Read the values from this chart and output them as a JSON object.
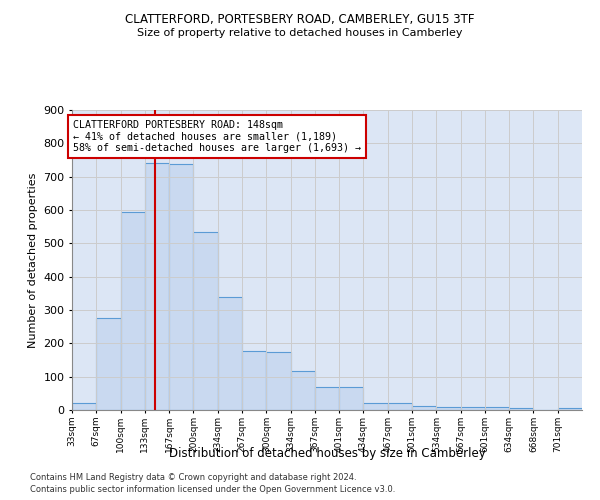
{
  "title1": "CLATTERFORD, PORTESBERY ROAD, CAMBERLEY, GU15 3TF",
  "title2": "Size of property relative to detached houses in Camberley",
  "xlabel": "Distribution of detached houses by size in Camberley",
  "ylabel": "Number of detached properties",
  "footnote1": "Contains HM Land Registry data © Crown copyright and database right 2024.",
  "footnote2": "Contains public sector information licensed under the Open Government Licence v3.0.",
  "bar_labels": [
    "33sqm",
    "67sqm",
    "100sqm",
    "133sqm",
    "167sqm",
    "200sqm",
    "234sqm",
    "267sqm",
    "300sqm",
    "334sqm",
    "367sqm",
    "401sqm",
    "434sqm",
    "467sqm",
    "501sqm",
    "534sqm",
    "567sqm",
    "601sqm",
    "634sqm",
    "668sqm",
    "701sqm"
  ],
  "bar_values": [
    20,
    275,
    595,
    742,
    738,
    535,
    340,
    178,
    175,
    118,
    68,
    68,
    22,
    22,
    13,
    10,
    10,
    8,
    7,
    1,
    7
  ],
  "bar_color": "#c9d9f0",
  "bar_edge_color": "#5b9bd5",
  "annotation_text": "CLATTERFORD PORTESBERY ROAD: 148sqm\n← 41% of detached houses are smaller (1,189)\n58% of semi-detached houses are larger (1,693) →",
  "vline_color": "#cc0000",
  "annotation_box_color": "#ffffff",
  "annotation_box_edge": "#cc0000",
  "grid_color": "#cccccc",
  "background_color": "#ffffff",
  "plot_bg_color": "#dce6f5",
  "ylim": [
    0,
    900
  ],
  "yticks": [
    0,
    100,
    200,
    300,
    400,
    500,
    600,
    700,
    800,
    900
  ],
  "bin_width": 33.5
}
